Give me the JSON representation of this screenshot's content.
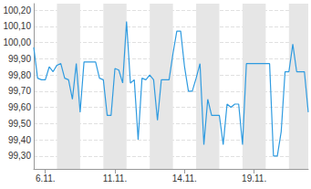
{
  "chart_data": {
    "type": "line",
    "color": "#2f9be0",
    "grid": true,
    "categories": [
      null,
      null,
      null,
      "6.11.",
      null,
      null,
      null,
      null,
      null,
      null,
      null,
      null,
      null,
      null,
      null,
      null,
      null,
      null,
      null,
      null,
      null,
      "11.11.",
      null,
      null,
      null,
      null,
      null,
      null,
      null,
      null,
      null,
      null,
      null,
      null,
      null,
      null,
      null,
      null,
      null,
      "14.11.",
      null,
      null,
      null,
      null,
      null,
      null,
      null,
      null,
      null,
      null,
      null,
      null,
      null,
      null,
      null,
      null,
      null,
      "19.11.",
      null,
      null,
      null,
      null,
      null,
      null,
      null,
      null,
      null,
      null,
      null,
      null,
      null,
      null
    ],
    "values": [
      99.97,
      99.78,
      99.77,
      99.77,
      99.85,
      99.82,
      99.86,
      99.87,
      99.78,
      99.77,
      99.65,
      99.87,
      99.57,
      99.88,
      99.88,
      99.88,
      99.88,
      99.78,
      99.77,
      99.55,
      99.55,
      99.84,
      99.83,
      99.75,
      100.13,
      99.75,
      99.77,
      99.4,
      99.78,
      99.77,
      99.8,
      99.77,
      99.52,
      99.77,
      99.77,
      99.77,
      99.93,
      100.07,
      100.07,
      99.85,
      99.7,
      99.7,
      99.78,
      99.87,
      99.37,
      99.65,
      99.55,
      99.55,
      99.55,
      99.37,
      99.62,
      99.6,
      99.62,
      99.62,
      99.37,
      99.87,
      99.87,
      99.87,
      99.87,
      99.87,
      99.87,
      99.87,
      99.3,
      99.3,
      99.45,
      99.82,
      99.82,
      99.99,
      99.82,
      99.82,
      99.82,
      99.57
    ],
    "ylim": [
      99.22,
      100.24
    ],
    "yticks": [
      {
        "value": 99.3,
        "label": "99,30"
      },
      {
        "value": 99.4,
        "label": "99,40"
      },
      {
        "value": 99.5,
        "label": "99,50"
      },
      {
        "value": 99.6,
        "label": "99,60"
      },
      {
        "value": 99.7,
        "label": "99,70"
      },
      {
        "value": 99.8,
        "label": "99,80"
      },
      {
        "value": 99.9,
        "label": "99,90"
      },
      {
        "value": 100.0,
        "label": "100,00"
      },
      {
        "value": 100.1,
        "label": "100,10"
      },
      {
        "value": 100.2,
        "label": "100,20"
      }
    ]
  }
}
